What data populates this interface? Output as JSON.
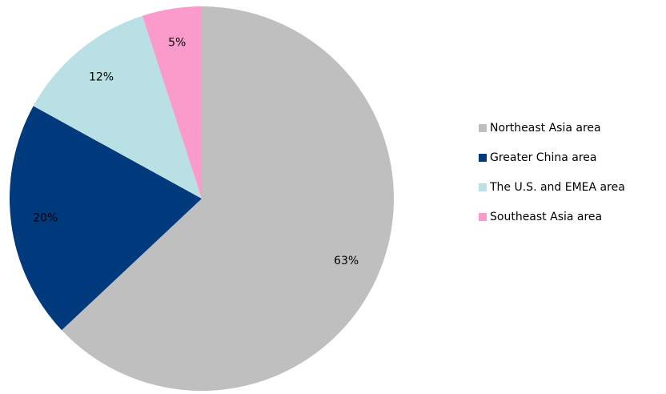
{
  "chart_data": {
    "type": "pie",
    "categories": [
      "Northeast Asia area",
      "Greater China area",
      "The U.S. and EMEA area",
      "Southeast Asia area"
    ],
    "values": [
      63,
      20,
      12,
      5
    ],
    "value_labels": [
      "63%",
      "20%",
      "12%",
      "5%"
    ],
    "colors": [
      "#bfbfbf",
      "#003a7d",
      "#b9e0e5",
      "#fa9bcc"
    ],
    "legend": "right"
  }
}
